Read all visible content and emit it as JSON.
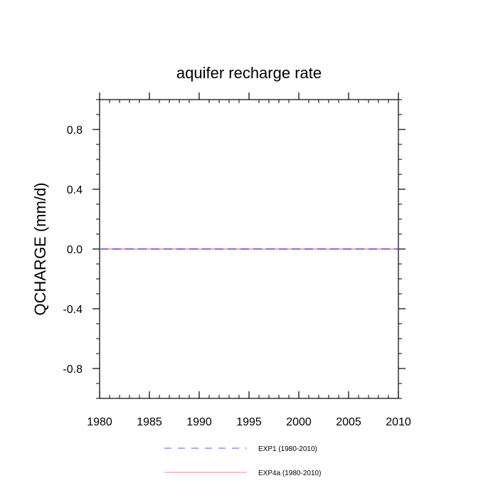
{
  "chart_data": {
    "type": "line",
    "title": "aquifer recharge rate",
    "xlabel": "",
    "ylabel": "QCHARGE  (mm/d)",
    "xlim": [
      1980,
      2010
    ],
    "ylim": [
      -1.0,
      1.0
    ],
    "x_ticks": [
      1980,
      1985,
      1990,
      1995,
      2000,
      2005,
      2010
    ],
    "x_tick_labels": [
      "1980",
      "1985",
      "1990",
      "1995",
      "2000",
      "2005",
      "2010"
    ],
    "y_ticks": [
      0.8,
      0.4,
      0.0,
      -0.4,
      -0.8
    ],
    "y_tick_labels": [
      "0.8",
      "0.4",
      "0.0",
      "-0.4",
      "-0.8"
    ],
    "grid": false,
    "legend_position": "bottom",
    "series": [
      {
        "name": "EXP1 (1980-2010)",
        "color": "#5b5bd6",
        "style": "dashed",
        "x": [
          1980,
          2010
        ],
        "y": [
          0.0,
          0.0
        ]
      },
      {
        "name": "EXP4a (1980-2010)",
        "color": "#ef8a8a",
        "style": "solid",
        "x": [
          1980,
          2010
        ],
        "y": [
          0.0,
          0.0
        ]
      }
    ]
  }
}
